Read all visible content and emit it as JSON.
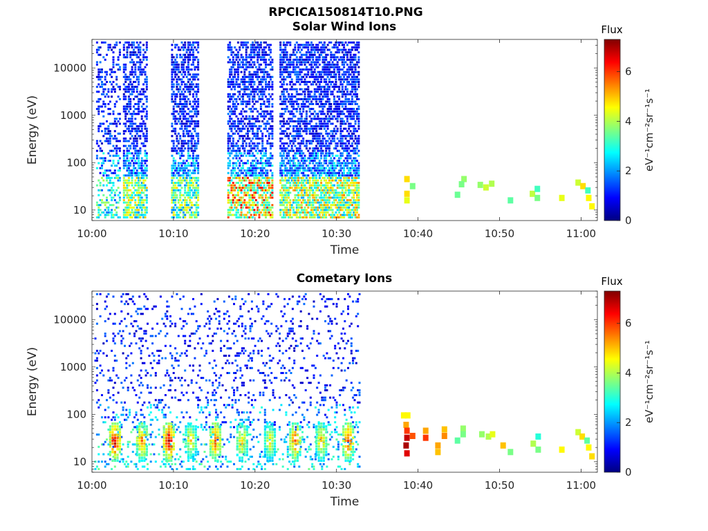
{
  "figure": {
    "title": "RPCICA150814T10.PNG"
  },
  "colormap": {
    "name": "jet",
    "stops": [
      "#000080",
      "#0000ff",
      "#0080ff",
      "#00ffff",
      "#80ff80",
      "#ffff00",
      "#ff8000",
      "#ff0000",
      "#800000"
    ]
  },
  "chart_data": [
    {
      "type": "heatmap",
      "title": "Solar Wind Ions",
      "xlabel": "Time",
      "ylabel": "Energy (eV)",
      "xticks": [
        "10:00",
        "10:10",
        "10:20",
        "10:30",
        "10:40",
        "10:50",
        "11:00"
      ],
      "xlim_minutes": [
        0,
        62
      ],
      "yscale": "log",
      "ylim": [
        6,
        40000
      ],
      "yticks": [
        10,
        100,
        1000,
        10000
      ],
      "colorbar": {
        "label_top": "Flux",
        "unit": "eV⁻¹cm⁻²sr⁻¹s⁻¹",
        "range": [
          0,
          7.3
        ],
        "ticks": [
          0,
          2,
          4,
          6
        ]
      },
      "bursts": [
        {
          "t_start": 0.5,
          "t_end": 3.5,
          "density": 0.28,
          "low_value": 3.5
        },
        {
          "t_start": 3.8,
          "t_end": 6.7,
          "density": 0.55,
          "low_value": 4.2
        },
        {
          "t_start": 9.7,
          "t_end": 13.0,
          "density": 0.55,
          "low_value": 4.0
        },
        {
          "t_start": 16.6,
          "t_end": 22.0,
          "density": 0.55,
          "low_value": 5.5
        },
        {
          "t_start": 23.0,
          "t_end": 32.7,
          "density": 0.6,
          "low_value": 4.6
        }
      ],
      "sparse_points": [
        {
          "t": 38.3,
          "e": 45,
          "v": 4.8
        },
        {
          "t": 38.3,
          "e": 22,
          "v": 4.8
        },
        {
          "t": 38.3,
          "e": 16,
          "v": 4.4
        },
        {
          "t": 39.0,
          "e": 32,
          "v": 3.6
        },
        {
          "t": 45.3,
          "e": 45,
          "v": 3.8
        },
        {
          "t": 45.0,
          "e": 35,
          "v": 3.6
        },
        {
          "t": 44.5,
          "e": 21,
          "v": 3.5
        },
        {
          "t": 47.3,
          "e": 34,
          "v": 3.8
        },
        {
          "t": 48.0,
          "e": 30,
          "v": 4.2
        },
        {
          "t": 48.7,
          "e": 36,
          "v": 4.0
        },
        {
          "t": 51.0,
          "e": 16,
          "v": 3.4
        },
        {
          "t": 53.7,
          "e": 22,
          "v": 4.1
        },
        {
          "t": 54.3,
          "e": 28,
          "v": 3.2
        },
        {
          "t": 54.3,
          "e": 18,
          "v": 3.6
        },
        {
          "t": 57.3,
          "e": 18,
          "v": 4.4
        },
        {
          "t": 59.3,
          "e": 38,
          "v": 4.2
        },
        {
          "t": 59.9,
          "e": 32,
          "v": 4.8
        },
        {
          "t": 60.5,
          "e": 26,
          "v": 3.2
        },
        {
          "t": 60.6,
          "e": 18,
          "v": 4.6
        },
        {
          "t": 61.0,
          "e": 12,
          "v": 4.6
        }
      ]
    },
    {
      "type": "heatmap",
      "title": "Cometary Ions",
      "xlabel": "Time",
      "ylabel": "Energy (eV)",
      "xticks": [
        "10:00",
        "10:10",
        "10:20",
        "10:30",
        "10:40",
        "10:50",
        "11:00"
      ],
      "xlim_minutes": [
        0,
        62
      ],
      "yscale": "log",
      "ylim": [
        6,
        40000
      ],
      "yticks": [
        10,
        100,
        1000,
        10000
      ],
      "colorbar": {
        "label_top": "Flux",
        "unit": "eV⁻¹cm⁻²sr⁻¹s⁻¹",
        "range": [
          0,
          7.3
        ],
        "ticks": [
          0,
          2,
          4,
          6
        ]
      },
      "bursts": [
        {
          "t_start": 0.3,
          "t_end": 32.7,
          "density": 0.12,
          "low_value": 3.0
        }
      ],
      "hotspots": [
        {
          "t": 2.7,
          "v": 6.8
        },
        {
          "t": 6.0,
          "v": 5.8
        },
        {
          "t": 9.3,
          "v": 7.0
        },
        {
          "t": 12.0,
          "v": 5.0
        },
        {
          "t": 15.0,
          "v": 6.2
        },
        {
          "t": 18.3,
          "v": 5.2
        },
        {
          "t": 21.7,
          "v": 4.8
        },
        {
          "t": 24.8,
          "v": 6.0
        },
        {
          "t": 28.0,
          "v": 5.2
        },
        {
          "t": 31.3,
          "v": 6.2
        }
      ],
      "sparse_points": [
        {
          "t": 37.9,
          "e": 95,
          "v": 4.6
        },
        {
          "t": 38.4,
          "e": 95,
          "v": 4.6
        },
        {
          "t": 38.2,
          "e": 60,
          "v": 5.2
        },
        {
          "t": 38.3,
          "e": 45,
          "v": 6.0
        },
        {
          "t": 38.3,
          "e": 32,
          "v": 6.8
        },
        {
          "t": 38.2,
          "e": 22,
          "v": 7.0
        },
        {
          "t": 38.3,
          "e": 15,
          "v": 6.6
        },
        {
          "t": 39.0,
          "e": 35,
          "v": 5.8
        },
        {
          "t": 40.6,
          "e": 45,
          "v": 5.2
        },
        {
          "t": 40.6,
          "e": 32,
          "v": 6.0
        },
        {
          "t": 42.1,
          "e": 22,
          "v": 5.2
        },
        {
          "t": 42.1,
          "e": 16,
          "v": 5.0
        },
        {
          "t": 42.9,
          "e": 48,
          "v": 5.0
        },
        {
          "t": 42.9,
          "e": 35,
          "v": 5.4
        },
        {
          "t": 45.2,
          "e": 50,
          "v": 3.8
        },
        {
          "t": 45.2,
          "e": 38,
          "v": 3.6
        },
        {
          "t": 44.5,
          "e": 28,
          "v": 3.4
        },
        {
          "t": 47.5,
          "e": 38,
          "v": 3.8
        },
        {
          "t": 48.3,
          "e": 34,
          "v": 4.0
        },
        {
          "t": 48.8,
          "e": 38,
          "v": 4.4
        },
        {
          "t": 50.1,
          "e": 22,
          "v": 5.0
        },
        {
          "t": 51.0,
          "e": 16,
          "v": 3.6
        },
        {
          "t": 53.8,
          "e": 24,
          "v": 4.0
        },
        {
          "t": 54.4,
          "e": 34,
          "v": 3.0
        },
        {
          "t": 54.4,
          "e": 18,
          "v": 3.6
        },
        {
          "t": 57.3,
          "e": 18,
          "v": 4.6
        },
        {
          "t": 59.3,
          "e": 42,
          "v": 4.2
        },
        {
          "t": 59.8,
          "e": 34,
          "v": 4.8
        },
        {
          "t": 60.4,
          "e": 28,
          "v": 3.4
        },
        {
          "t": 60.6,
          "e": 20,
          "v": 4.6
        },
        {
          "t": 61.0,
          "e": 13,
          "v": 4.8
        }
      ]
    }
  ]
}
